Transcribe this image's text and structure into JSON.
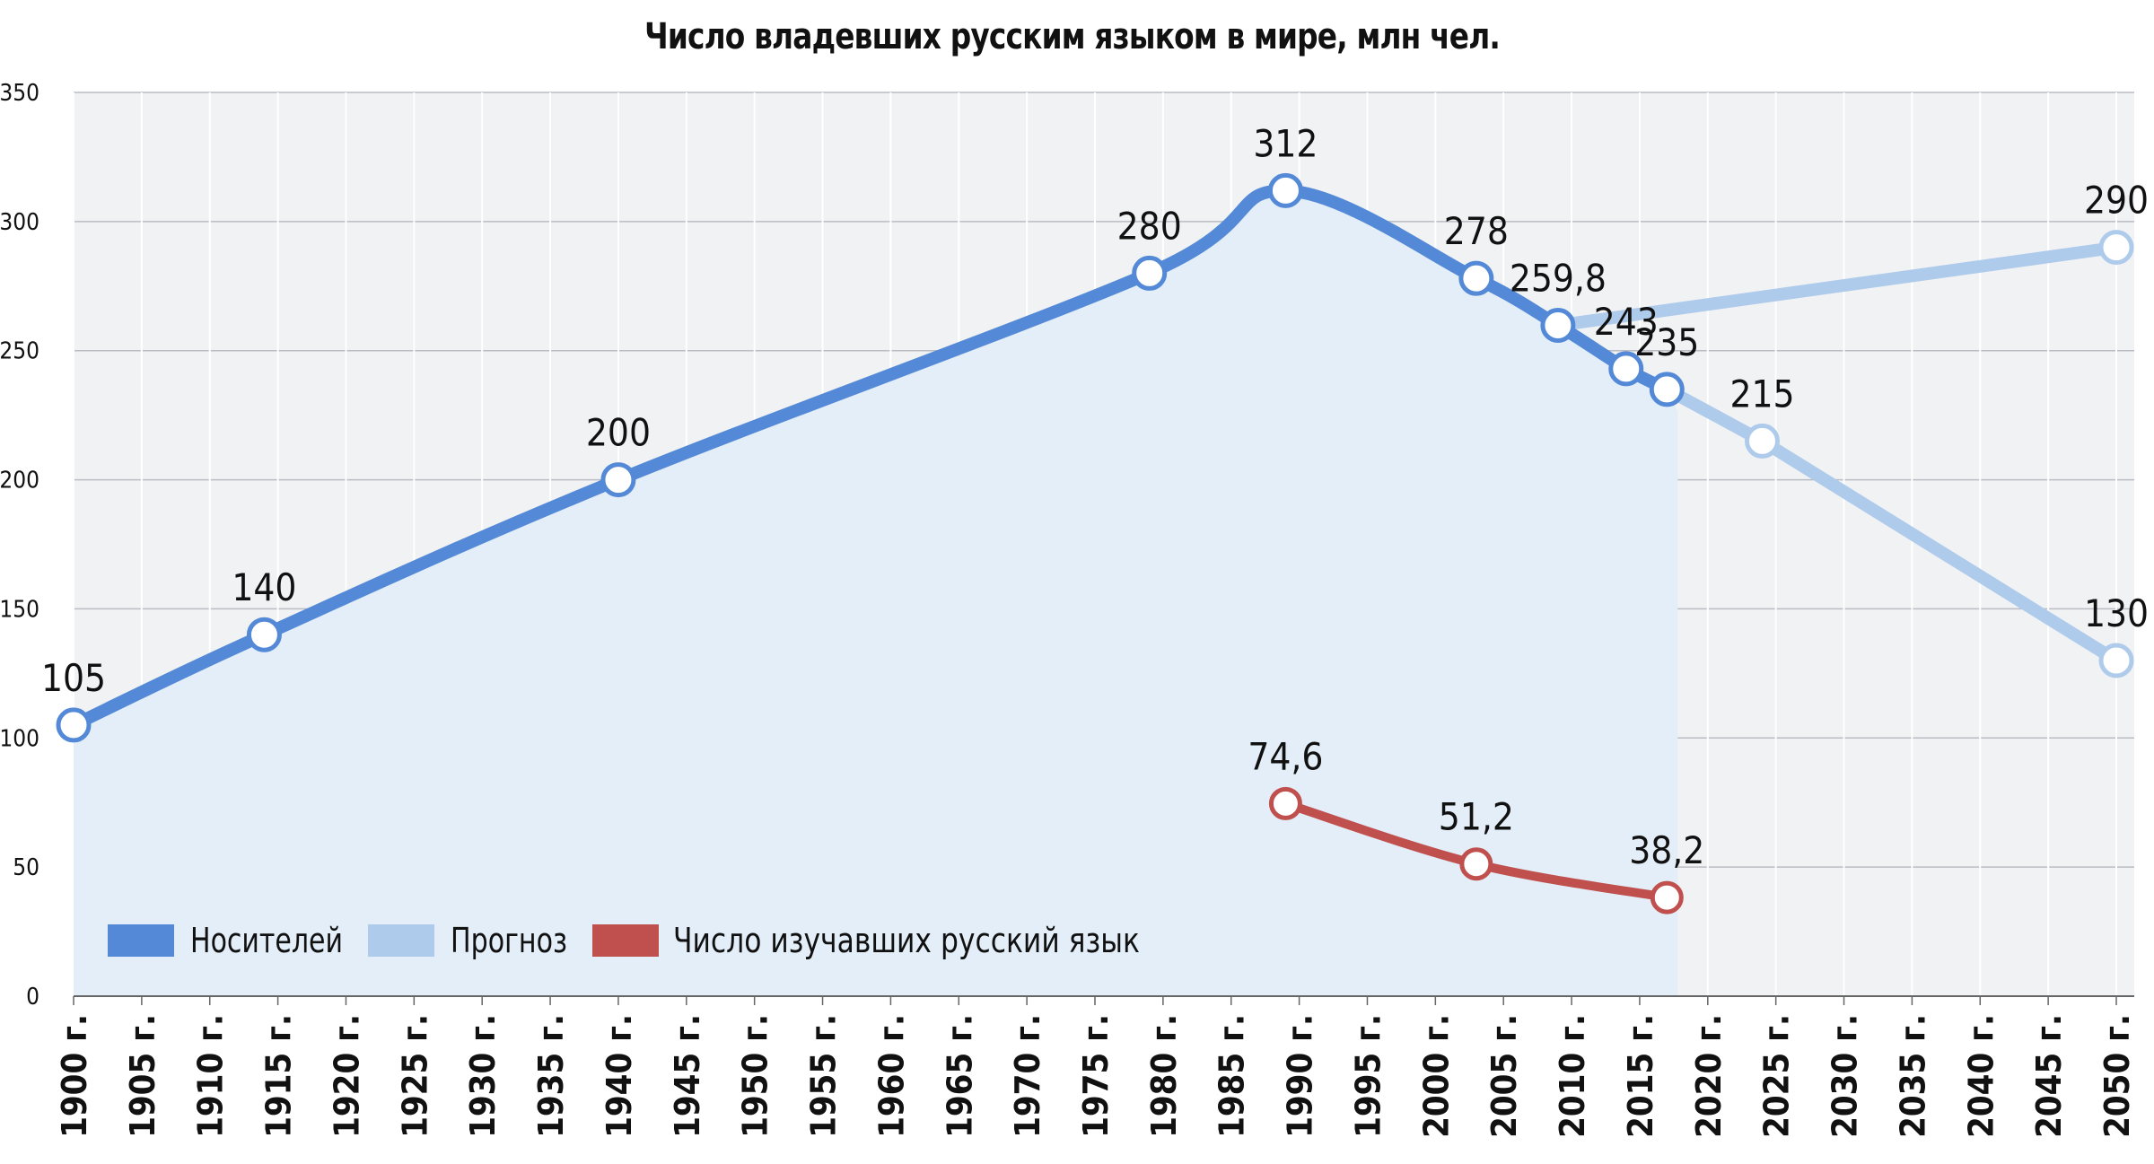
{
  "chart_data": {
    "type": "line",
    "title": "Число владевших русским языком в мире, млн чел.",
    "xlabel": "",
    "ylabel": "",
    "ylim": [
      0,
      350
    ],
    "xlim": [
      1900,
      2050
    ],
    "y_ticks": [
      0,
      50,
      100,
      150,
      200,
      250,
      300,
      350
    ],
    "y_tick_labels": [
      "0",
      "50",
      "100",
      "150",
      "200",
      "250",
      "300",
      "350"
    ],
    "x_ticks": [
      1900,
      1905,
      1910,
      1915,
      1920,
      1925,
      1930,
      1935,
      1940,
      1945,
      1950,
      1955,
      1960,
      1965,
      1970,
      1975,
      1980,
      1985,
      1990,
      1995,
      2000,
      2005,
      2010,
      2015,
      2020,
      2025,
      2030,
      2035,
      2040,
      2045,
      2050
    ],
    "x_tick_labels": [
      "1900 г.",
      "1905 г.",
      "1910 г.",
      "1915 г.",
      "1920 г.",
      "1925 г.",
      "1930 г.",
      "1935 г.",
      "1940 г.",
      "1945 г.",
      "1950 г.",
      "1955 г.",
      "1960 г.",
      "1965 г.",
      "1970 г.",
      "1975 г.",
      "1980 г.",
      "1985 г.",
      "1990 г.",
      "1995 г.",
      "2000 г.",
      "2005 г.",
      "2010 г.",
      "2015 г.",
      "2020 г.",
      "2025 г.",
      "2030 г.",
      "2035 г.",
      "2040 г.",
      "2045 г.",
      "2050 г."
    ],
    "grid": true,
    "legend_position": "bottom-left",
    "series": [
      {
        "name": "Носителей",
        "color": "#5389d6",
        "area_fill": "#e3eef8",
        "points": [
          {
            "x": 1900,
            "y": 105,
            "label": "105"
          },
          {
            "x": 1914,
            "y": 140,
            "label": "140"
          },
          {
            "x": 1940,
            "y": 200,
            "label": "200"
          },
          {
            "x": 1979,
            "y": 280,
            "label": "280"
          },
          {
            "x": 1989,
            "y": 312,
            "label": "312"
          },
          {
            "x": 2003,
            "y": 278,
            "label": "278"
          },
          {
            "x": 2009,
            "y": 259.8,
            "label": "259,8"
          },
          {
            "x": 2014,
            "y": 243,
            "label": "243"
          },
          {
            "x": 2017,
            "y": 235,
            "label": "235"
          }
        ]
      },
      {
        "name": "Прогноз",
        "color": "#aecbeb",
        "branches": [
          [
            {
              "x": 2017,
              "y": 235,
              "label": ""
            },
            {
              "x": 2024,
              "y": 215,
              "label": "215"
            },
            {
              "x": 2050,
              "y": 130,
              "label": "130"
            }
          ],
          [
            {
              "x": 2009,
              "y": 259.8,
              "label": ""
            },
            {
              "x": 2050,
              "y": 290,
              "label": "290"
            }
          ]
        ]
      },
      {
        "name": "Число изучавших русский язык",
        "color": "#c0504d",
        "points": [
          {
            "x": 1989,
            "y": 74.6,
            "label": "74,6"
          },
          {
            "x": 2003,
            "y": 51.2,
            "label": "51,2"
          },
          {
            "x": 2017,
            "y": 38.2,
            "label": "38,2"
          }
        ]
      }
    ]
  }
}
